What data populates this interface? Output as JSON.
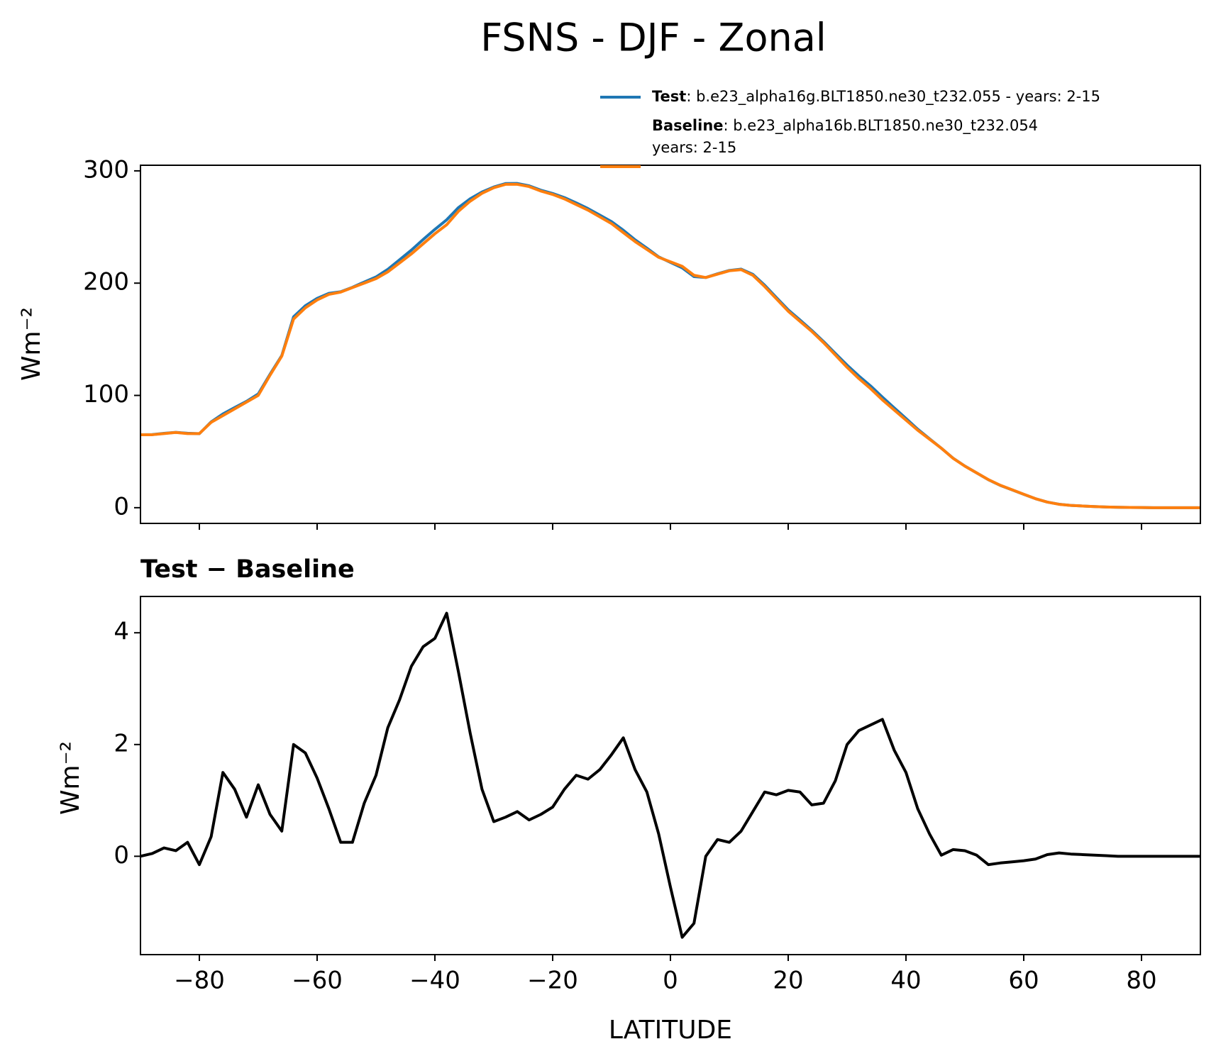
{
  "chart_data": [
    {
      "type": "line",
      "title": "FSNS - DJF - Zonal",
      "ylabel": "Wm⁻²",
      "xlim": [
        -90,
        90
      ],
      "xticks": [
        -80,
        -60,
        -40,
        -20,
        0,
        20,
        40,
        60,
        80
      ],
      "xtick_labels": false,
      "ylim": [
        -14,
        305
      ],
      "yticks": [
        0,
        100,
        200,
        300
      ],
      "x": [
        -90,
        -88,
        -86,
        -84,
        -82,
        -80,
        -78,
        -76,
        -74,
        -72,
        -70,
        -68,
        -66,
        -64,
        -62,
        -60,
        -58,
        -56,
        -54,
        -52,
        -50,
        -48,
        -46,
        -44,
        -42,
        -40,
        -38,
        -36,
        -34,
        -32,
        -30,
        -28,
        -26,
        -24,
        -22,
        -20,
        -18,
        -16,
        -14,
        -12,
        -10,
        -8,
        -6,
        -4,
        -2,
        0,
        2,
        4,
        6,
        8,
        10,
        12,
        14,
        16,
        18,
        20,
        22,
        24,
        26,
        28,
        30,
        32,
        34,
        36,
        38,
        40,
        42,
        44,
        46,
        48,
        50,
        52,
        54,
        56,
        58,
        60,
        62,
        64,
        66,
        68,
        70,
        72,
        74,
        76,
        78,
        80,
        82,
        84,
        86,
        88,
        90
      ],
      "legend_loc": "upper right",
      "series": [
        {
          "name": "Test",
          "description": [
            ": b.e23_alpha16g.BLT1850.ne30_t232.055 - years: 2-15"
          ],
          "color": "#1f77b4",
          "values": [
            65,
            65.1,
            66.2,
            67.1,
            66.3,
            65.9,
            76.4,
            83.5,
            89.2,
            94.7,
            101.3,
            118.8,
            135.5,
            170,
            179.9,
            186.4,
            190.9,
            192.3,
            196.3,
            201,
            205.5,
            212.3,
            220.8,
            229.4,
            238.8,
            247.9,
            256.4,
            267.3,
            275.2,
            281.2,
            285.6,
            288.7,
            288.8,
            286.7,
            282.8,
            279.9,
            276.2,
            271.5,
            266.4,
            260.6,
            254.8,
            247.1,
            238.6,
            231.2,
            223.4,
            218.5,
            213.6,
            205.8,
            205,
            208.3,
            211.3,
            212.5,
            207.8,
            198.2,
            187.1,
            176.2,
            167.2,
            157.9,
            148,
            137.4,
            127,
            117.3,
            108.4,
            98.5,
            88.9,
            79.5,
            69.9,
            61.4,
            53,
            44.1,
            37.1,
            31,
            24.9,
            19.9,
            15.9,
            11.9,
            8,
            5,
            3.1,
            2,
            1.5,
            1,
            0.6,
            0.4,
            0.2,
            0.1,
            0,
            0,
            0,
            0,
            0
          ]
        },
        {
          "name": "Baseline",
          "description": [
            ": b.e23_alpha16b.BLT1850.ne30_t232.054",
            "years: 2-15"
          ],
          "color": "#ff7f0e",
          "values": [
            65,
            65,
            66,
            67,
            66,
            66,
            76,
            82,
            88,
            94,
            100,
            118,
            135,
            168,
            178,
            185,
            190,
            192,
            196,
            200,
            204,
            210,
            218,
            226,
            235,
            244,
            252,
            264,
            273,
            280,
            285,
            288,
            288,
            286,
            282,
            279,
            275,
            270,
            265,
            259,
            253,
            245,
            237,
            230,
            223,
            219,
            215,
            207,
            205,
            208,
            211,
            212,
            207,
            197,
            186,
            175,
            166,
            157,
            147,
            136,
            125,
            115,
            106,
            96,
            87,
            78,
            69,
            61,
            53,
            44,
            37,
            31,
            25,
            20,
            16,
            12,
            8,
            5,
            3,
            2,
            1.5,
            1,
            0.6,
            0.4,
            0.2,
            0.1,
            0,
            0,
            0,
            0,
            0
          ]
        }
      ]
    },
    {
      "type": "line",
      "title": "Test − Baseline",
      "xlabel": "LATITUDE",
      "ylabel": "Wm⁻²",
      "xlim": [
        -90,
        90
      ],
      "xticks": [
        {
          "value": -80,
          "label": "−80"
        },
        {
          "value": -60,
          "label": "−60"
        },
        {
          "value": -40,
          "label": "−40"
        },
        {
          "value": -20,
          "label": "−20"
        },
        0,
        20,
        40,
        60,
        80
      ],
      "xtick_labels": true,
      "ylim": [
        -1.76,
        4.65
      ],
      "yticks": [
        0,
        2,
        4
      ],
      "x": [
        -90,
        -88,
        -86,
        -84,
        -82,
        -80,
        -78,
        -76,
        -74,
        -72,
        -70,
        -68,
        -66,
        -64,
        -62,
        -60,
        -58,
        -56,
        -54,
        -52,
        -50,
        -48,
        -46,
        -44,
        -42,
        -40,
        -38,
        -36,
        -34,
        -32,
        -30,
        -28,
        -26,
        -24,
        -22,
        -20,
        -18,
        -16,
        -14,
        -12,
        -10,
        -8,
        -6,
        -4,
        -2,
        0,
        2,
        4,
        6,
        8,
        10,
        12,
        14,
        16,
        18,
        20,
        22,
        24,
        26,
        28,
        30,
        32,
        34,
        36,
        38,
        40,
        42,
        44,
        46,
        48,
        50,
        52,
        54,
        56,
        58,
        60,
        62,
        64,
        66,
        68,
        70,
        72,
        74,
        76,
        78,
        80,
        82,
        84,
        86,
        88,
        90
      ],
      "series": [
        {
          "name": "Test − Baseline",
          "color": "#000000",
          "values": [
            0,
            0.05,
            0.15,
            0.1,
            0.25,
            -0.15,
            0.35,
            1.5,
            1.2,
            0.7,
            1.28,
            0.75,
            0.45,
            2.0,
            1.85,
            1.4,
            0.85,
            0.25,
            0.25,
            0.95,
            1.45,
            2.3,
            2.8,
            3.4,
            3.75,
            3.9,
            4.35,
            3.3,
            2.2,
            1.2,
            0.62,
            0.7,
            0.8,
            0.65,
            0.75,
            0.88,
            1.2,
            1.45,
            1.38,
            1.55,
            1.82,
            2.12,
            1.55,
            1.15,
            0.4,
            -0.55,
            -1.45,
            -1.2,
            0,
            0.3,
            0.25,
            0.45,
            0.8,
            1.15,
            1.1,
            1.18,
            1.15,
            0.92,
            0.95,
            1.35,
            2.0,
            2.25,
            2.35,
            2.45,
            1.9,
            1.5,
            0.85,
            0.4,
            0.02,
            0.12,
            0.1,
            0.02,
            -0.15,
            -0.12,
            -0.1,
            -0.08,
            -0.05,
            0.03,
            0.06,
            0.04,
            0.03,
            0.02,
            0.01,
            0,
            0,
            0,
            0,
            0,
            0,
            0,
            0
          ]
        }
      ]
    }
  ]
}
